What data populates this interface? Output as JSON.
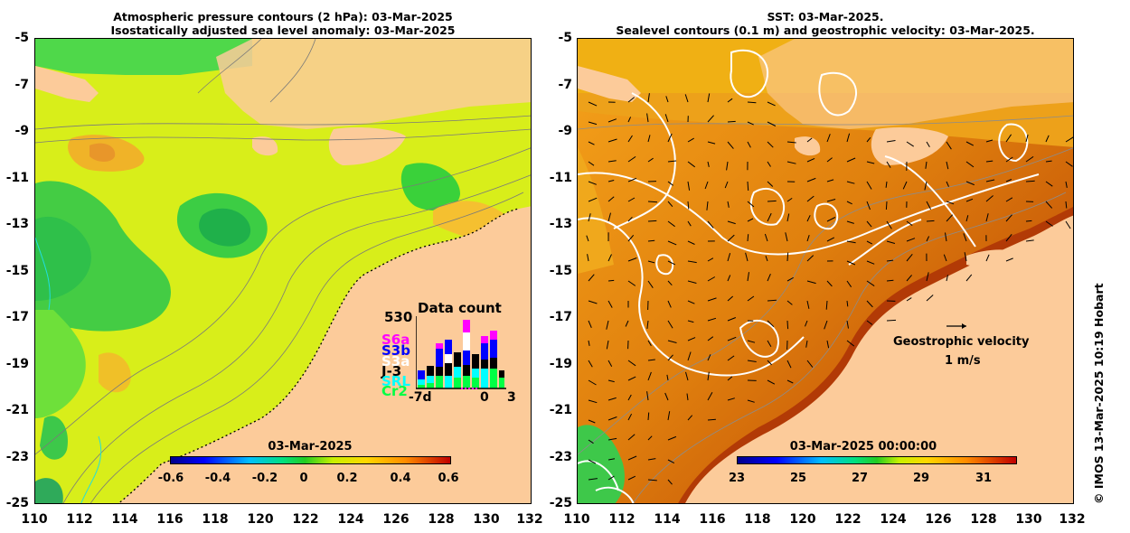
{
  "left_panel": {
    "title_line1": "Atmospheric pressure contours (2 hPa): 03-Mar-2025",
    "title_line2": "Isostatically adjusted sea level anomaly: 03-Mar-2025",
    "colorbar_title": "03-Mar-2025",
    "colorbar_ticks": [
      "-0.6",
      "-0.4",
      "-0.2",
      "0",
      "0.2",
      "0.4",
      "0.6"
    ],
    "data_count": {
      "title": "Data count",
      "max_label": "530",
      "x_start": "-7d",
      "x_zero": "0",
      "x_end": "3",
      "satellites": [
        {
          "name": "S6a",
          "color": "#ff00ff"
        },
        {
          "name": "S3b",
          "color": "#0000ff"
        },
        {
          "name": "S3a",
          "color": "#ffffff"
        },
        {
          "name": "J-3",
          "color": "#000000"
        },
        {
          "name": "SRL",
          "color": "#00ffff"
        },
        {
          "name": "Cr2",
          "color": "#00ff44"
        }
      ]
    }
  },
  "right_panel": {
    "title_line1": "SST: 03-Mar-2025.",
    "title_line2": "Sealevel contours (0.1 m) and geostrophic velocity: 03-Mar-2025.",
    "colorbar_title": "03-Mar-2025 00:00:00",
    "colorbar_ticks": [
      "23",
      "25",
      "27",
      "29",
      "31"
    ],
    "velocity_label": "Geostrophic velocity",
    "velocity_scale": "1 m/s"
  },
  "y_ticks": [
    "-5",
    "-7",
    "-9",
    "-11",
    "-13",
    "-15",
    "-17",
    "-19",
    "-21",
    "-23",
    "-25"
  ],
  "x_ticks": [
    "110",
    "112",
    "114",
    "116",
    "118",
    "120",
    "122",
    "124",
    "126",
    "128",
    "130",
    "132"
  ],
  "credit": "© IMOS 13-Mar-2025 10:19 Hobart",
  "colors": {
    "land": "#fccb9a",
    "sla_base": "#d8ee1a",
    "sla_low": "#2fd62f",
    "sla_high": "#f3b31a",
    "sst_base": "#e08a10",
    "sst_hot": "#b83a04"
  }
}
